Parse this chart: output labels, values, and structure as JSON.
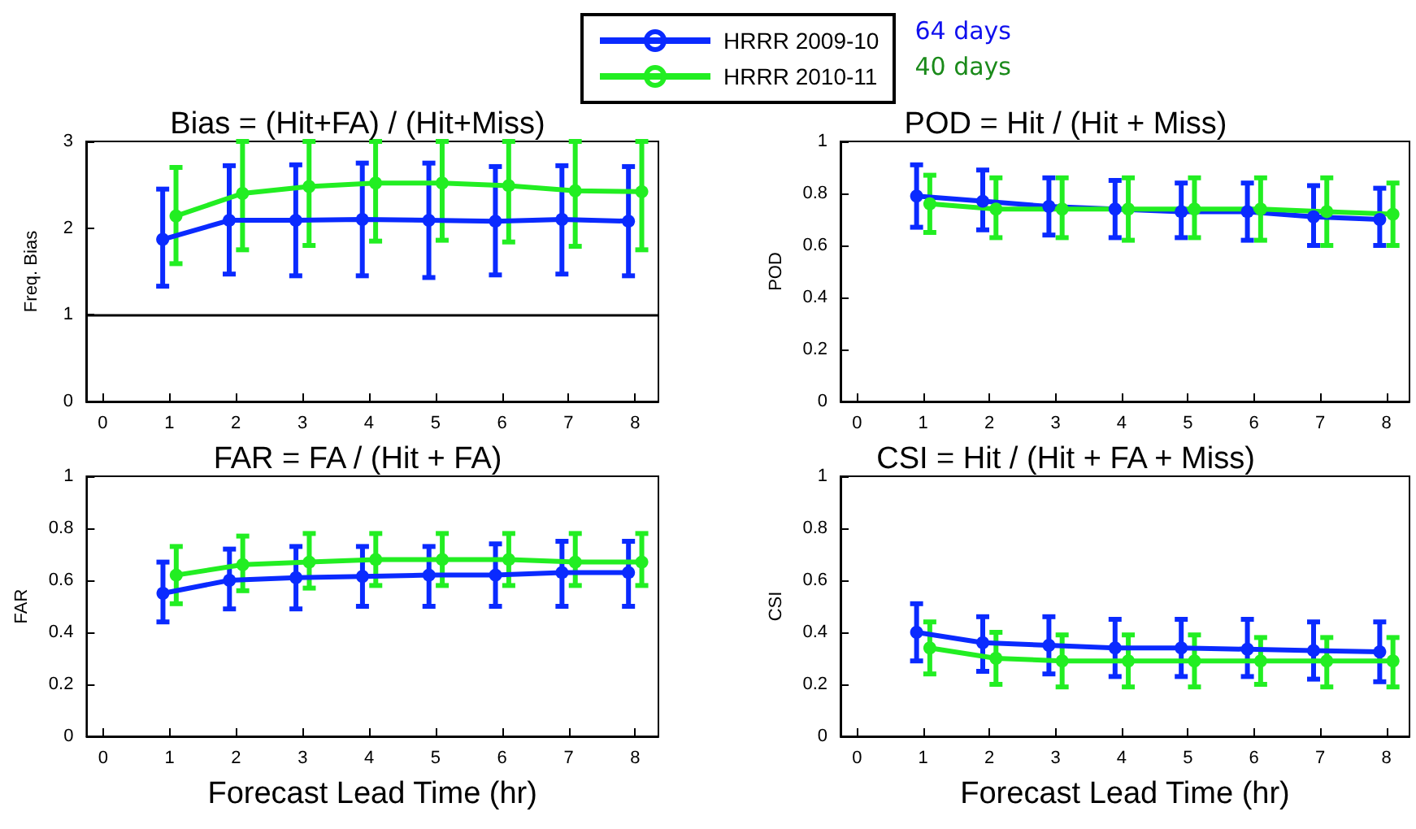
{
  "chart_data": [
    {
      "type": "line",
      "title": "Bias = (Hit+FA) / (Hit+Miss)",
      "ylabel": "Freq. Bias",
      "xlim": [
        -0.25,
        8.35
      ],
      "xticks": [
        0,
        1,
        2,
        3,
        4,
        5,
        6,
        7,
        8
      ],
      "ylim": [
        0,
        3
      ],
      "yticks": [
        0,
        1,
        2,
        3
      ],
      "grid": false,
      "marker": "circle",
      "line_style": "solid",
      "legend": "top",
      "annotations": [
        "64 days",
        "40 days"
      ],
      "ref_lines": [
        {
          "axis": "y",
          "value": 1,
          "color": "#000000"
        }
      ],
      "series": [
        {
          "name": "HRRR 2009-10",
          "color": "#0a2aff",
          "x": [
            0.9,
            1.9,
            2.9,
            3.9,
            4.9,
            5.9,
            6.9,
            7.9
          ],
          "values": [
            1.87,
            2.09,
            2.09,
            2.1,
            2.09,
            2.08,
            2.1,
            2.08
          ],
          "errors": [
            [
              1.33,
              2.45
            ],
            [
              1.47,
              2.72
            ],
            [
              1.45,
              2.73
            ],
            [
              1.45,
              2.75
            ],
            [
              1.43,
              2.75
            ],
            [
              1.46,
              2.71
            ],
            [
              1.47,
              2.72
            ],
            [
              1.45,
              2.71
            ]
          ]
        },
        {
          "name": "HRRR 2010-11",
          "color": "#22ee22",
          "x": [
            1.1,
            2.1,
            3.1,
            4.1,
            5.1,
            6.1,
            7.1,
            8.1
          ],
          "values": [
            2.14,
            2.4,
            2.48,
            2.52,
            2.52,
            2.49,
            2.43,
            2.42
          ],
          "errors": [
            [
              1.59,
              2.7
            ],
            [
              1.75,
              3
            ],
            [
              1.8,
              3
            ],
            [
              1.85,
              3
            ],
            [
              1.86,
              3
            ],
            [
              1.84,
              3
            ],
            [
              1.79,
              3
            ],
            [
              1.75,
              3
            ]
          ]
        }
      ]
    },
    {
      "type": "line",
      "title": "POD = Hit / (Hit + Miss)",
      "ylabel": "POD",
      "xlim": [
        -0.25,
        8.35
      ],
      "xticks": [
        0,
        1,
        2,
        3,
        4,
        5,
        6,
        7,
        8
      ],
      "ylim": [
        0,
        1
      ],
      "yticks": [
        0,
        0.2,
        0.4,
        0.6,
        0.8,
        1
      ],
      "grid": false,
      "marker": "circle",
      "line_style": "solid",
      "series": [
        {
          "color": "#0a2aff",
          "x": [
            0.9,
            1.9,
            2.9,
            3.9,
            4.9,
            5.9,
            6.9,
            7.9
          ],
          "values": [
            0.79,
            0.77,
            0.75,
            0.74,
            0.73,
            0.73,
            0.71,
            0.7
          ],
          "errors": [
            [
              0.67,
              0.91
            ],
            [
              0.66,
              0.89
            ],
            [
              0.64,
              0.86
            ],
            [
              0.63,
              0.85
            ],
            [
              0.63,
              0.84
            ],
            [
              0.62,
              0.84
            ],
            [
              0.6,
              0.83
            ],
            [
              0.6,
              0.82
            ]
          ]
        },
        {
          "color": "#22ee22",
          "x": [
            1.1,
            2.1,
            3.1,
            4.1,
            5.1,
            6.1,
            7.1,
            8.1
          ],
          "values": [
            0.76,
            0.74,
            0.74,
            0.74,
            0.74,
            0.74,
            0.73,
            0.72
          ],
          "errors": [
            [
              0.65,
              0.87
            ],
            [
              0.63,
              0.86
            ],
            [
              0.63,
              0.86
            ],
            [
              0.62,
              0.86
            ],
            [
              0.63,
              0.86
            ],
            [
              0.62,
              0.86
            ],
            [
              0.6,
              0.86
            ],
            [
              0.6,
              0.84
            ]
          ]
        }
      ]
    },
    {
      "type": "line",
      "title": "FAR = FA / (Hit + FA)",
      "xlabel": "Forecast Lead Time (hr)",
      "ylabel": "FAR",
      "xlim": [
        -0.25,
        8.35
      ],
      "xticks": [
        0,
        1,
        2,
        3,
        4,
        5,
        6,
        7,
        8
      ],
      "ylim": [
        0,
        1
      ],
      "yticks": [
        0,
        0.2,
        0.4,
        0.6,
        0.8,
        1
      ],
      "grid": false,
      "marker": "circle",
      "line_style": "solid",
      "series": [
        {
          "color": "#0a2aff",
          "x": [
            0.9,
            1.9,
            2.9,
            3.9,
            4.9,
            5.9,
            6.9,
            7.9
          ],
          "values": [
            0.55,
            0.6,
            0.61,
            0.615,
            0.62,
            0.62,
            0.63,
            0.63
          ],
          "errors": [
            [
              0.44,
              0.67
            ],
            [
              0.49,
              0.72
            ],
            [
              0.49,
              0.73
            ],
            [
              0.5,
              0.73
            ],
            [
              0.5,
              0.73
            ],
            [
              0.5,
              0.74
            ],
            [
              0.5,
              0.75
            ],
            [
              0.5,
              0.75
            ]
          ]
        },
        {
          "color": "#22ee22",
          "x": [
            1.1,
            2.1,
            3.1,
            4.1,
            5.1,
            6.1,
            7.1,
            8.1
          ],
          "values": [
            0.62,
            0.66,
            0.67,
            0.68,
            0.68,
            0.68,
            0.67,
            0.67
          ],
          "errors": [
            [
              0.51,
              0.73
            ],
            [
              0.56,
              0.77
            ],
            [
              0.57,
              0.78
            ],
            [
              0.58,
              0.78
            ],
            [
              0.58,
              0.78
            ],
            [
              0.58,
              0.78
            ],
            [
              0.58,
              0.78
            ],
            [
              0.58,
              0.78
            ]
          ]
        }
      ]
    },
    {
      "type": "line",
      "title": "CSI = Hit / (Hit + FA + Miss)",
      "xlabel": "Forecast Lead Time (hr)",
      "ylabel": "CSI",
      "xlim": [
        -0.25,
        8.35
      ],
      "xticks": [
        0,
        1,
        2,
        3,
        4,
        5,
        6,
        7,
        8
      ],
      "ylim": [
        0,
        1
      ],
      "yticks": [
        0,
        0.2,
        0.4,
        0.6,
        0.8,
        1
      ],
      "grid": false,
      "marker": "circle",
      "line_style": "solid",
      "series": [
        {
          "color": "#0a2aff",
          "x": [
            0.9,
            1.9,
            2.9,
            3.9,
            4.9,
            5.9,
            6.9,
            7.9
          ],
          "values": [
            0.4,
            0.36,
            0.35,
            0.34,
            0.34,
            0.335,
            0.33,
            0.325
          ],
          "errors": [
            [
              0.29,
              0.51
            ],
            [
              0.25,
              0.46
            ],
            [
              0.24,
              0.46
            ],
            [
              0.23,
              0.45
            ],
            [
              0.23,
              0.45
            ],
            [
              0.23,
              0.45
            ],
            [
              0.22,
              0.44
            ],
            [
              0.21,
              0.44
            ]
          ]
        },
        {
          "color": "#22ee22",
          "x": [
            1.1,
            2.1,
            3.1,
            4.1,
            5.1,
            6.1,
            7.1,
            8.1
          ],
          "values": [
            0.34,
            0.3,
            0.29,
            0.29,
            0.29,
            0.29,
            0.29,
            0.29
          ],
          "errors": [
            [
              0.24,
              0.44
            ],
            [
              0.2,
              0.4
            ],
            [
              0.19,
              0.39
            ],
            [
              0.19,
              0.39
            ],
            [
              0.19,
              0.39
            ],
            [
              0.2,
              0.38
            ],
            [
              0.19,
              0.38
            ],
            [
              0.19,
              0.38
            ]
          ]
        }
      ]
    }
  ]
}
